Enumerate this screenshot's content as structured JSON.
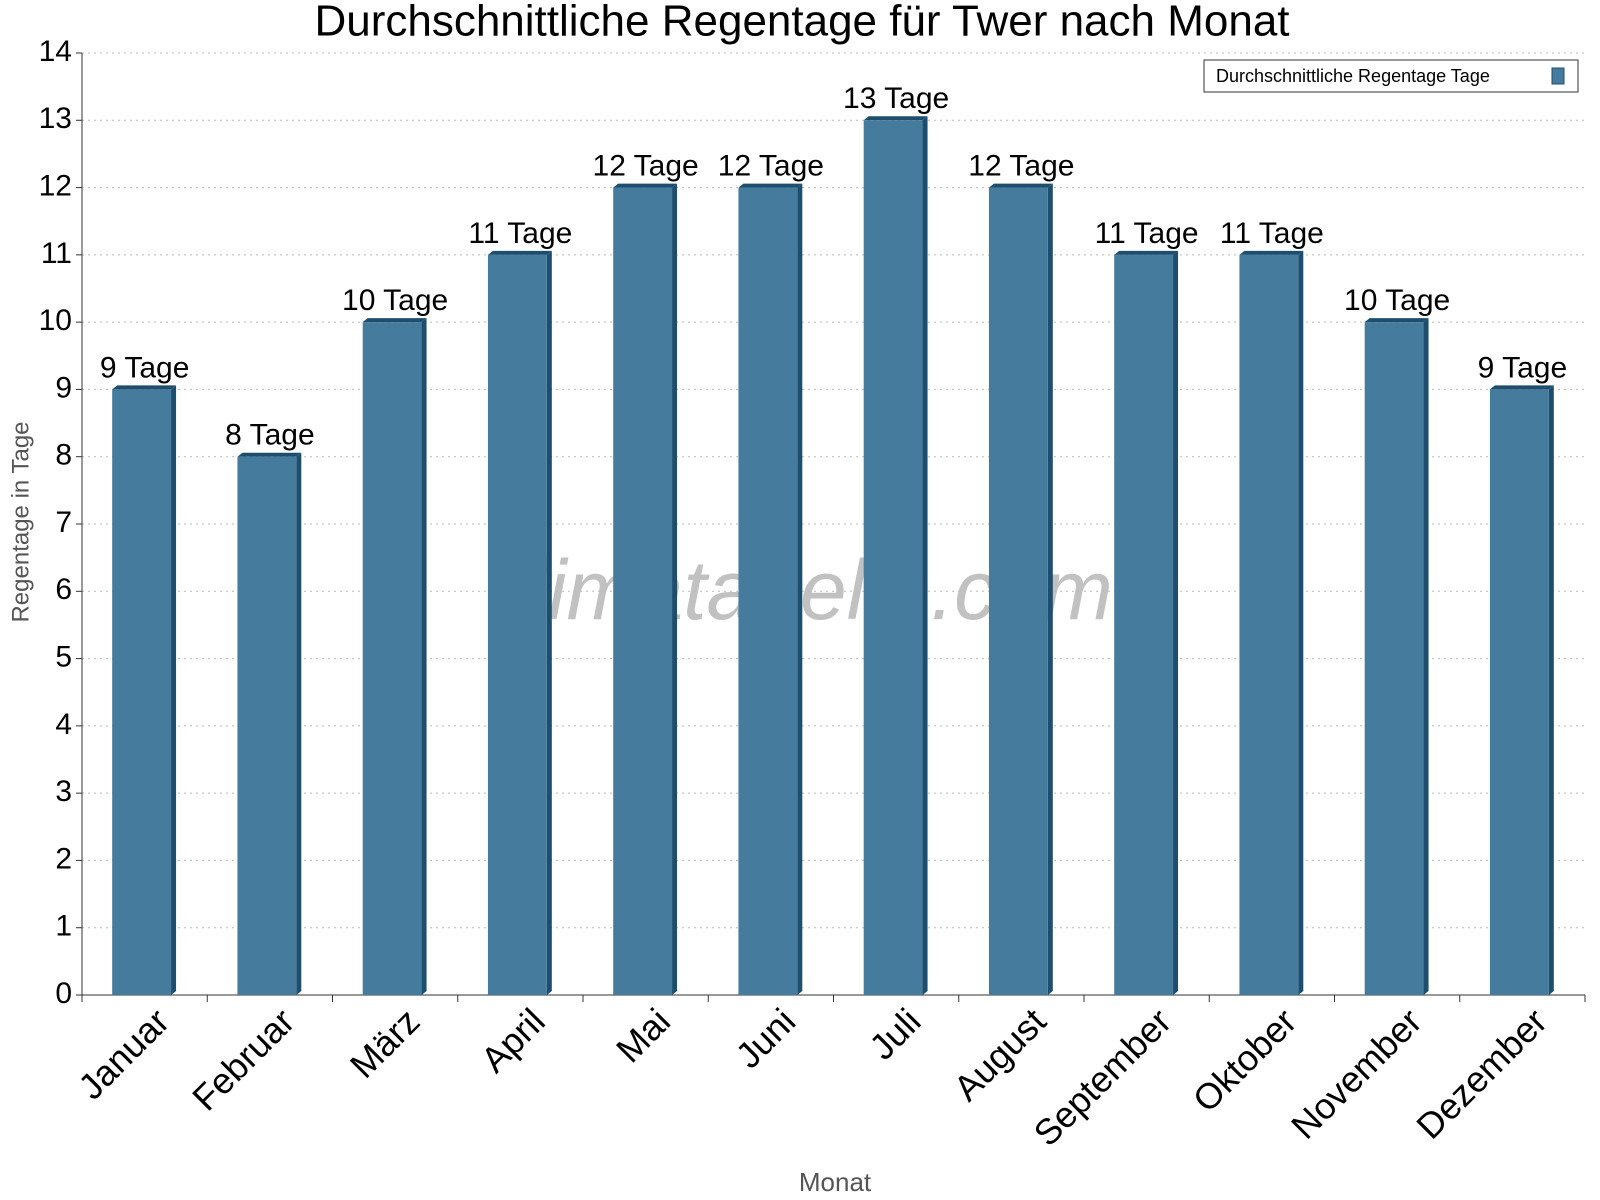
{
  "chart_data": {
    "type": "bar",
    "title": "Durchschnittliche Regentage für Twer nach Monat",
    "x_label": "Monat",
    "y_label": "Regentage in Tage",
    "watermark": "klimatabelle.com",
    "categories": [
      "Januar",
      "Februar",
      "März",
      "April",
      "Mai",
      "Juni",
      "Juli",
      "August",
      "September",
      "Oktober",
      "November",
      "Dezember"
    ],
    "series": [
      {
        "name": "Durchschnittliche Regentage Tage",
        "color": "#457b9d",
        "values": [
          9,
          8,
          10,
          11,
          12,
          12,
          13,
          12,
          11,
          11,
          10,
          9
        ],
        "value_labels": [
          "9 Tage",
          "8 Tage",
          "10 Tage",
          "11 Tage",
          "12 Tage",
          "12 Tage",
          "13 Tage",
          "12 Tage",
          "11 Tage",
          "11 Tage",
          "10 Tage",
          "9 Tage"
        ]
      }
    ],
    "ylim": [
      0,
      14
    ],
    "yticks": [
      0,
      1,
      2,
      3,
      4,
      5,
      6,
      7,
      8,
      9,
      10,
      11,
      12,
      13,
      14
    ],
    "grid": true,
    "legend": "top-right"
  }
}
